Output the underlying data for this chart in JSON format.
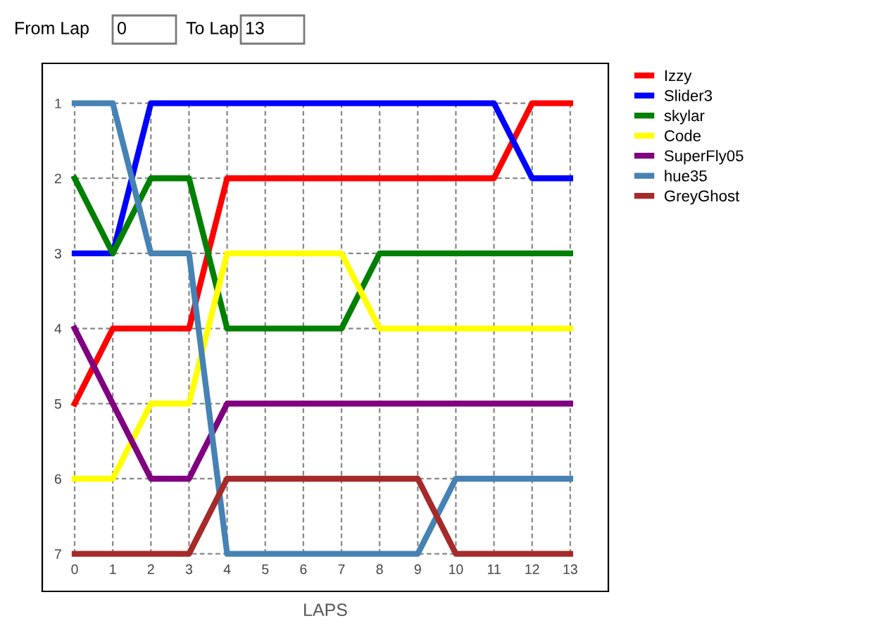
{
  "chart_data": {
    "type": "line",
    "xlabel": "LAPS",
    "annotations": [
      "From Lap",
      "0",
      "To Lap",
      "13"
    ],
    "x": [
      0,
      1,
      2,
      3,
      4,
      5,
      6,
      7,
      8,
      9,
      10,
      11,
      12,
      13
    ],
    "series": [
      {
        "name": "Izzy",
        "color": "#ff0000",
        "values": [
          5,
          4,
          4,
          4,
          2,
          2,
          2,
          2,
          2,
          2,
          2,
          2,
          1,
          1
        ]
      },
      {
        "name": "Slider3",
        "color": "#0000ff",
        "values": [
          3,
          3,
          1,
          1,
          1,
          1,
          1,
          1,
          1,
          1,
          1,
          1,
          2,
          2
        ]
      },
      {
        "name": "skylar",
        "color": "#008000",
        "values": [
          2,
          3,
          2,
          2,
          4,
          4,
          4,
          4,
          3,
          3,
          3,
          3,
          3,
          3
        ]
      },
      {
        "name": "Code",
        "color": "#ffff00",
        "values": [
          6,
          6,
          5,
          5,
          3,
          3,
          3,
          3,
          4,
          4,
          4,
          4,
          4,
          4
        ]
      },
      {
        "name": "SuperFly05",
        "color": "#800080",
        "values": [
          4,
          5,
          6,
          6,
          5,
          5,
          5,
          5,
          5,
          5,
          5,
          5,
          5,
          5
        ]
      },
      {
        "name": "hue35",
        "color": "#4682b4",
        "values": [
          1,
          1,
          3,
          3,
          7,
          7,
          7,
          7,
          7,
          7,
          6,
          6,
          6,
          6
        ]
      },
      {
        "name": "GreyGhost",
        "color": "#a52a2a",
        "values": [
          7,
          7,
          7,
          7,
          6,
          6,
          6,
          6,
          6,
          6,
          7,
          7,
          7,
          7
        ]
      }
    ],
    "xlim": [
      -0.85,
      14.0
    ],
    "ylim": [
      7.5,
      0.47
    ],
    "xticks": [
      0,
      1,
      2,
      3,
      4,
      5,
      6,
      7,
      8,
      9,
      10,
      11,
      12,
      13
    ],
    "yticks": [
      1,
      2,
      3,
      4,
      5,
      6,
      7
    ],
    "grid": true,
    "legend": "right",
    "marker": "none",
    "line_style": "solid"
  }
}
